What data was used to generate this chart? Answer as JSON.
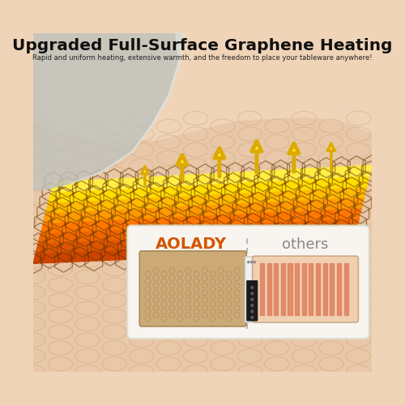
{
  "title": "Upgraded Full-Surface Graphene Heating",
  "subtitle": "Rapid and uniform heating, extensive warmth, and the freedom to place your tableware anywhere!",
  "bg_color": "#f0d4b8",
  "title_color": "#111111",
  "subtitle_color": "#222222",
  "aolady_label": "AOLADY",
  "others_label": "others",
  "label_color_aolady": "#d45500",
  "label_color_others": "#888888",
  "box_bg": "#ffffff",
  "heating_pad_color": "#d4aa78",
  "heating_pad_border": "#b89060",
  "stripe_color": "#e8956a",
  "stripe_bg": "#f0c8a0",
  "glass_color": "#b8bab0",
  "skin_color": "#e8c8a8",
  "skin_hex_color": "#d4a880"
}
